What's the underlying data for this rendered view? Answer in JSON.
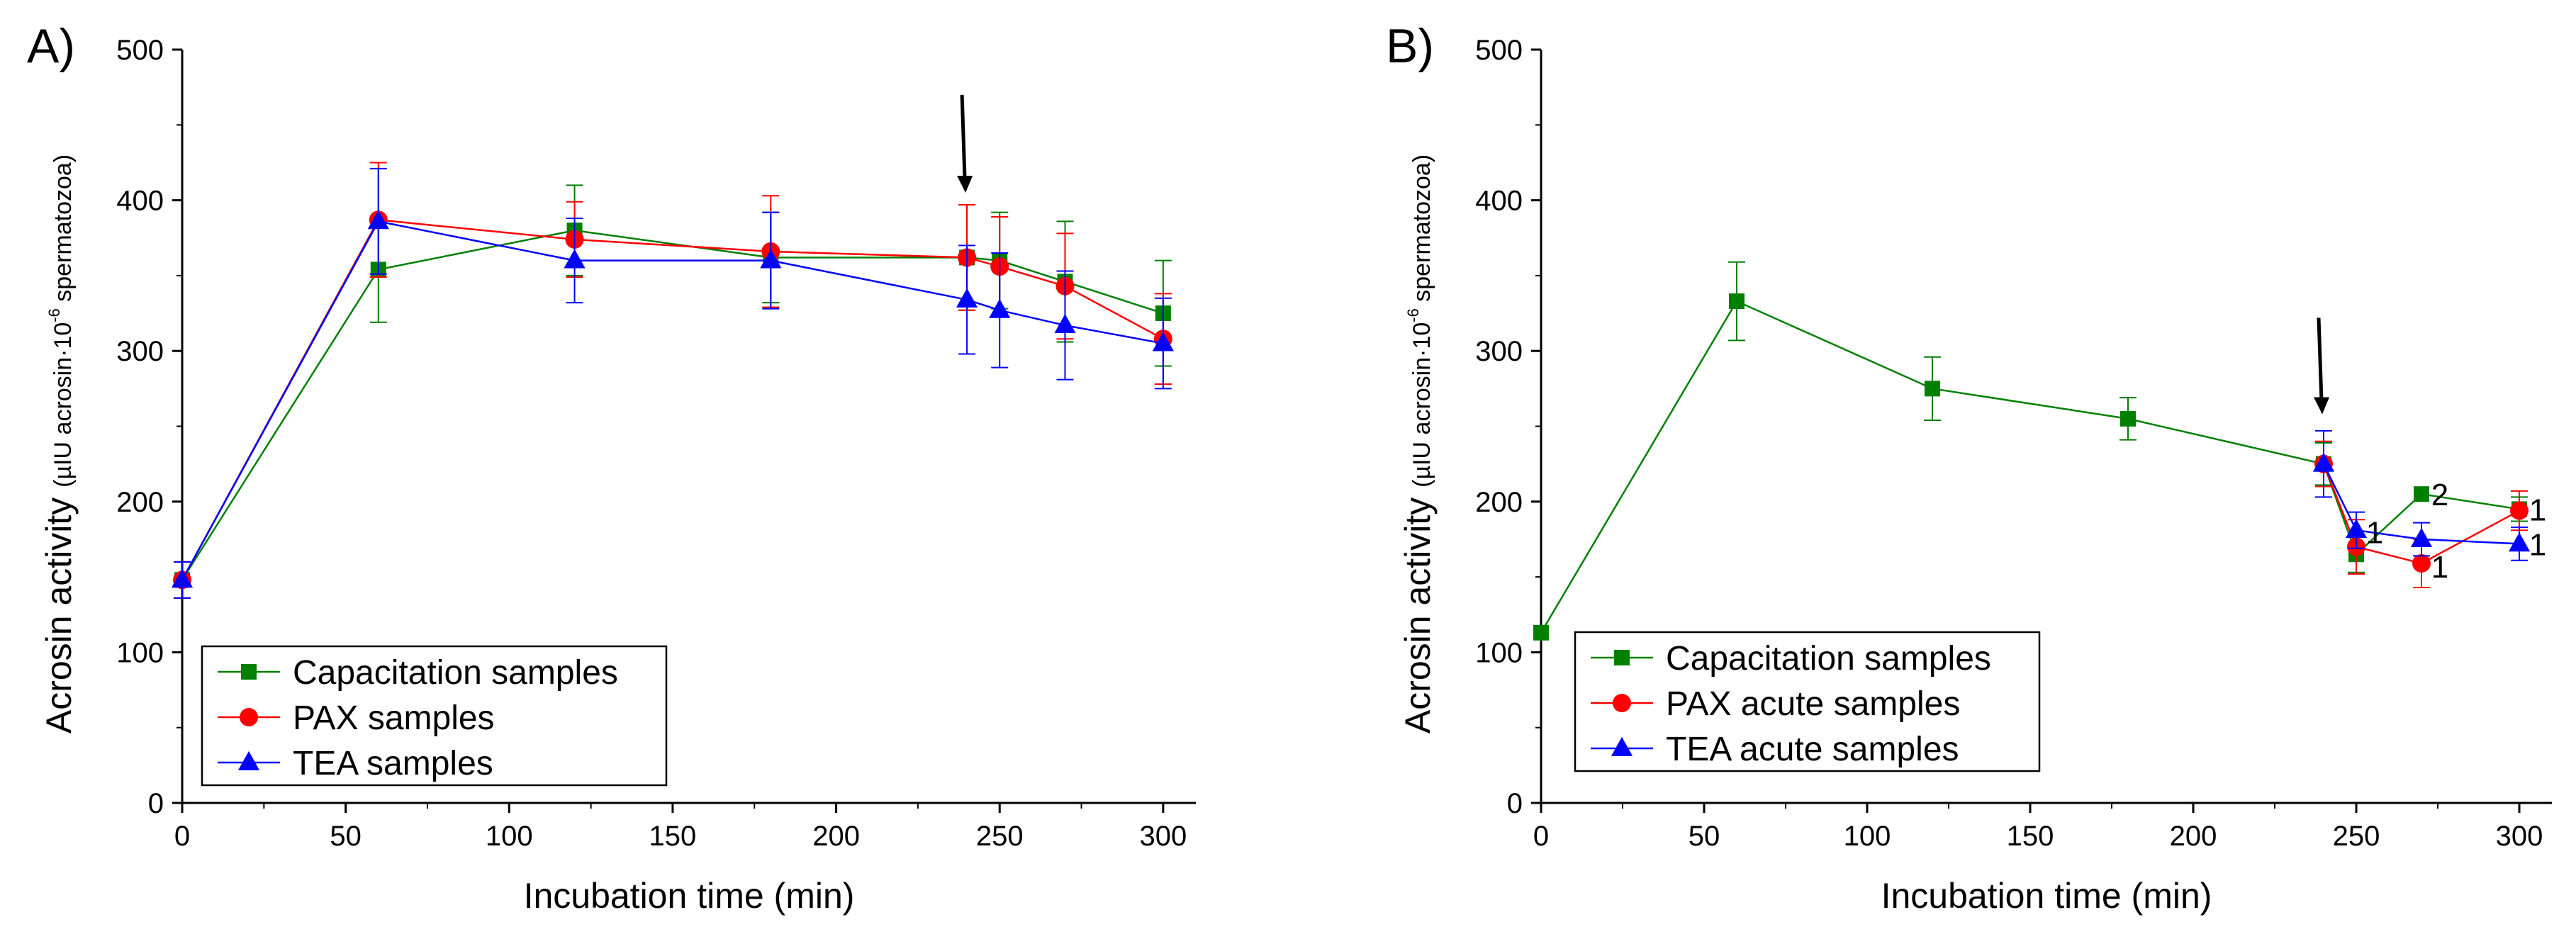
{
  "figure": {
    "panels_note": "Two-panel acrosin activity figure"
  },
  "chart_data": [
    {
      "type": "line",
      "panel_label": "A)",
      "title": "",
      "xlabel": "Incubation time (min)",
      "ylabel_main": "Acrosin activity",
      "ylabel_sub": "(µIU acrosin·10",
      "ylabel_sup": "-6",
      "ylabel_end": " spermatozoa)",
      "xlim": [
        0,
        310
      ],
      "ylim": [
        0,
        500
      ],
      "xticks": [
        "0",
        "50",
        "100",
        "150",
        "200",
        "250",
        "300"
      ],
      "yticks": [
        "0",
        "100",
        "200",
        "300",
        "400",
        "500"
      ],
      "xtick_values": [
        0,
        50,
        100,
        150,
        200,
        250,
        300
      ],
      "ytick_values": [
        0,
        100,
        200,
        300,
        400,
        500
      ],
      "arrow_at": {
        "x": 240,
        "y_top": 470,
        "y_bottom": 405
      },
      "series": [
        {
          "name": "Capacitation samples",
          "color": "#008000",
          "marker": "square",
          "x": [
            0,
            60,
            120,
            180,
            240,
            250,
            270,
            300
          ],
          "y": [
            148,
            354,
            380,
            362,
            362,
            360,
            346,
            325
          ],
          "err": [
            12,
            35,
            30,
            30,
            35,
            32,
            40,
            35
          ]
        },
        {
          "name": "PAX samples",
          "color": "#ff0000",
          "marker": "circle",
          "x": [
            0,
            60,
            120,
            180,
            240,
            250,
            270,
            300
          ],
          "y": [
            148,
            387,
            374,
            366,
            362,
            356,
            343,
            308
          ],
          "err": [
            12,
            38,
            25,
            37,
            35,
            33,
            35,
            30
          ]
        },
        {
          "name": "TEA samples",
          "color": "#0000ff",
          "marker": "triangle",
          "x": [
            0,
            60,
            120,
            180,
            240,
            250,
            270,
            300
          ],
          "y": [
            148,
            386,
            360,
            360,
            334,
            327,
            317,
            305
          ],
          "err": [
            12,
            35,
            28,
            32,
            36,
            38,
            36,
            30
          ]
        }
      ],
      "annotations": []
    },
    {
      "type": "line",
      "panel_label": "B)",
      "title": "",
      "xlabel": "Incubation time (min)",
      "ylabel_main": "Acrosin activity",
      "ylabel_sub": "(µIU acrosin·10",
      "ylabel_sup": "-6",
      "ylabel_end": " spermatozoa)",
      "xlim": [
        0,
        310
      ],
      "ylim": [
        0,
        500
      ],
      "xticks": [
        "0",
        "50",
        "100",
        "150",
        "200",
        "250",
        "300"
      ],
      "yticks": [
        "0",
        "100",
        "200",
        "300",
        "400",
        "500"
      ],
      "xtick_values": [
        0,
        50,
        100,
        150,
        200,
        250,
        300
      ],
      "ytick_values": [
        0,
        100,
        200,
        300,
        400,
        500
      ],
      "arrow_at": {
        "x": 240,
        "y_top": 322,
        "y_bottom": 258
      },
      "series": [
        {
          "name": "Capacitation samples",
          "color": "#008000",
          "marker": "square",
          "x": [
            0,
            60,
            120,
            180,
            240,
            250,
            270,
            300
          ],
          "y": [
            113,
            333,
            275,
            255,
            225,
            165,
            205,
            195
          ],
          "err": [
            0,
            26,
            21,
            14,
            14,
            12,
            0,
            8
          ]
        },
        {
          "name": "PAX acute samples",
          "color": "#ff0000",
          "marker": "circle",
          "x": [
            240,
            250,
            270,
            300
          ],
          "y": [
            225,
            170,
            159,
            194
          ],
          "err": [
            15,
            18,
            16,
            13
          ]
        },
        {
          "name": "TEA acute samples",
          "color": "#0000ff",
          "marker": "triangle",
          "x": [
            240,
            250,
            270,
            300
          ],
          "y": [
            225,
            181,
            175,
            172
          ],
          "err": [
            22,
            12,
            11,
            11
          ]
        }
      ],
      "annotations": [
        {
          "text": "1",
          "x": 253,
          "y": 180
        },
        {
          "text": "2",
          "x": 273,
          "y": 205
        },
        {
          "text": "1",
          "x": 273,
          "y": 157
        },
        {
          "text": "1",
          "x": 303,
          "y": 195
        },
        {
          "text": "1",
          "x": 303,
          "y": 172
        }
      ]
    }
  ]
}
